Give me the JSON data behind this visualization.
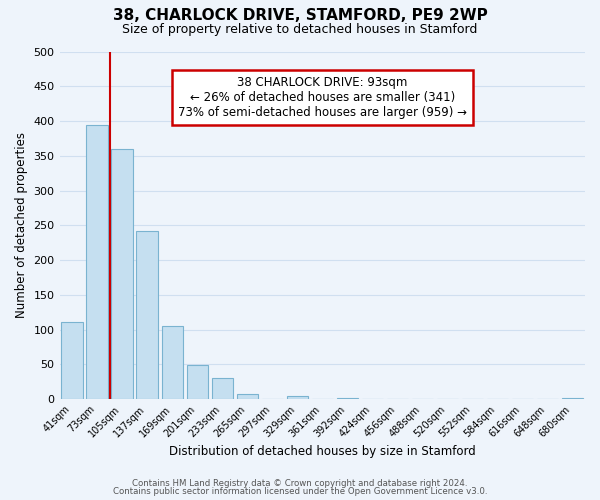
{
  "title": "38, CHARLOCK DRIVE, STAMFORD, PE9 2WP",
  "subtitle": "Size of property relative to detached houses in Stamford",
  "xlabel": "Distribution of detached houses by size in Stamford",
  "ylabel": "Number of detached properties",
  "bar_color": "#c5dff0",
  "bar_edge_color": "#7ab3d0",
  "categories": [
    "41sqm",
    "73sqm",
    "105sqm",
    "137sqm",
    "169sqm",
    "201sqm",
    "233sqm",
    "265sqm",
    "297sqm",
    "329sqm",
    "361sqm",
    "392sqm",
    "424sqm",
    "456sqm",
    "488sqm",
    "520sqm",
    "552sqm",
    "584sqm",
    "616sqm",
    "648sqm",
    "680sqm"
  ],
  "values": [
    111,
    394,
    360,
    242,
    105,
    49,
    30,
    8,
    0,
    5,
    0,
    2,
    0,
    0,
    0,
    0,
    0,
    0,
    0,
    0,
    2
  ],
  "ylim": [
    0,
    500
  ],
  "yticks": [
    0,
    50,
    100,
    150,
    200,
    250,
    300,
    350,
    400,
    450,
    500
  ],
  "property_line_color": "#cc0000",
  "property_line_xindex": 1.5,
  "annotation_title": "38 CHARLOCK DRIVE: 93sqm",
  "annotation_line1": "← 26% of detached houses are smaller (341)",
  "annotation_line2": "73% of semi-detached houses are larger (959) →",
  "annotation_box_color": "#ffffff",
  "annotation_box_edge": "#cc0000",
  "footer_line1": "Contains HM Land Registry data © Crown copyright and database right 2024.",
  "footer_line2": "Contains public sector information licensed under the Open Government Licence v3.0.",
  "background_color": "#eef4fb",
  "grid_color": "#d0dff0"
}
